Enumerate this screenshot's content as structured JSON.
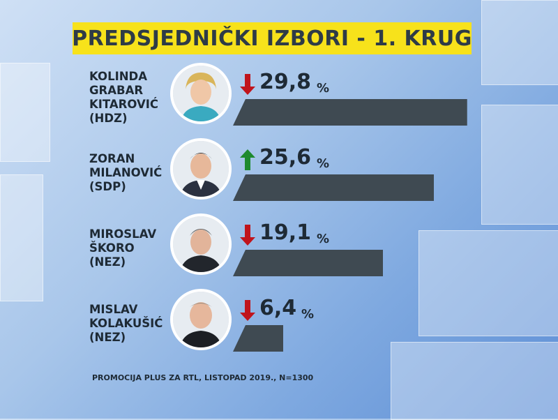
{
  "title": "PREDSJEDNIČKI IZBORI - 1. KRUG",
  "unit": "%",
  "source": "PROMOCIJA PLUS ZA RTL, LISTOPAD 2019., N=1300",
  "colors": {
    "title_bg": "#f7e21b",
    "bar": "#3f4a52",
    "arrow_down": "#c0141c",
    "arrow_up": "#1e8a2e"
  },
  "candidates": [
    {
      "name": "KOLINDA\nGRABAR\nKITAROVIĆ\n(HDZ)",
      "value_label": "29,8",
      "trend": "down"
    },
    {
      "name": "ZORAN\nMILANOVIĆ\n(SDP)",
      "value_label": "25,6",
      "trend": "up"
    },
    {
      "name": "MIROSLAV\nŠKORO\n(NEZ)",
      "value_label": "19,1",
      "trend": "down"
    },
    {
      "name": "MISLAV\nKOLAKUŠIĆ\n(NEZ)",
      "value_label": "6,4",
      "trend": "down"
    }
  ],
  "chart_data": {
    "type": "bar",
    "title": "PREDSJEDNIČKI IZBORI - 1. KRUG",
    "categories": [
      "KOLINDA GRABAR KITAROVIĆ (HDZ)",
      "ZORAN MILANOVIĆ (SDP)",
      "MIROSLAV ŠKORO (NEZ)",
      "MISLAV KOLAKUŠIĆ (NEZ)"
    ],
    "values": [
      29.8,
      25.6,
      19.1,
      6.4
    ],
    "trend": [
      "down",
      "up",
      "down",
      "down"
    ],
    "orientation": "horizontal",
    "xlim": [
      0,
      30
    ]
  }
}
